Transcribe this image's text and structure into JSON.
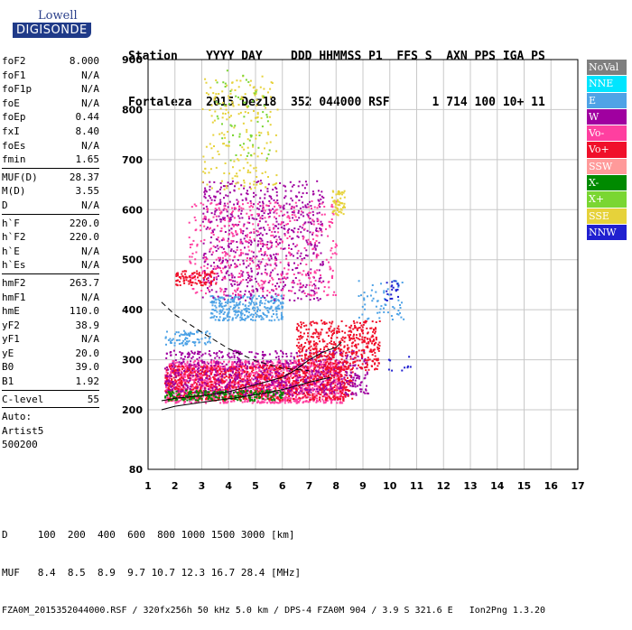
{
  "logo": {
    "line1": "Lowell",
    "line2": "DIGISONDE"
  },
  "header": {
    "line1": "Station    YYYY DAY    DDD HHMMSS P1  FFS S  AXN PPS IGA PS",
    "line2": "Fortaleza  2015 Dez18  352 044000 RSF      1 714 100 10+ 11"
  },
  "params": {
    "group1": [
      [
        "foF2",
        "8.000"
      ],
      [
        "foF1",
        "N/A"
      ],
      [
        "foF1p",
        "N/A"
      ],
      [
        "foE",
        "N/A"
      ],
      [
        "foEp",
        "0.44"
      ],
      [
        "fxI",
        "8.40"
      ],
      [
        "foEs",
        "N/A"
      ],
      [
        "fmin",
        "1.65"
      ]
    ],
    "group2": [
      [
        "MUF(D)",
        "28.37"
      ],
      [
        "M(D)",
        "3.55"
      ],
      [
        "D",
        "N/A"
      ]
    ],
    "group3": [
      [
        "h`F",
        "220.0"
      ],
      [
        "h`F2",
        "220.0"
      ],
      [
        "h`E",
        "N/A"
      ],
      [
        "h`Es",
        "N/A"
      ]
    ],
    "group4": [
      [
        "hmF2",
        "263.7"
      ],
      [
        "hmF1",
        "N/A"
      ],
      [
        "hmE",
        "110.0"
      ],
      [
        "yF2",
        "38.9"
      ],
      [
        "yF1",
        "N/A"
      ],
      [
        "yE",
        "20.0"
      ],
      [
        "B0",
        "39.0"
      ],
      [
        "B1",
        "1.92"
      ]
    ],
    "group5": [
      [
        "C-level",
        "55"
      ]
    ],
    "auto": [
      "Auto:",
      "Artist5",
      "500200"
    ]
  },
  "legend": [
    {
      "label": "NoVal",
      "color": "#7f7f7f"
    },
    {
      "label": "NNE",
      "color": "#00e5ff"
    },
    {
      "label": "E",
      "color": "#4fa3e6"
    },
    {
      "label": "W",
      "color": "#a000a0"
    },
    {
      "label": "Vo-",
      "color": "#ff3fa0"
    },
    {
      "label": "Vo+",
      "color": "#f0102a"
    },
    {
      "label": "SSW",
      "color": "#ff9a9a"
    },
    {
      "label": "X-",
      "color": "#008a00"
    },
    {
      "label": "X+",
      "color": "#7ad632"
    },
    {
      "label": "SSE",
      "color": "#e6d23a"
    },
    {
      "label": "NNW",
      "color": "#2020d0"
    }
  ],
  "footer": {
    "line1": "D     100  200  400  600  800 1000 1500 3000 [km]",
    "line2": "MUF   8.4  8.5  8.9  9.7 10.7 12.3 16.7 28.4 [MHz]",
    "line3": "FZA0M_2015352044000.RSF / 320fx256h 50 kHz 5.0 km / DPS-4 FZA0M 904 / 3.9 S 321.6 E   Ion2Png 1.3.20"
  },
  "chart_data": {
    "type": "scatter",
    "xlim": [
      1,
      17
    ],
    "ylim": [
      80,
      900
    ],
    "x_ticks": [
      1,
      2,
      3,
      4,
      5,
      6,
      7,
      8,
      9,
      10,
      11,
      12,
      13,
      14,
      15,
      16,
      17
    ],
    "y_ticks": [
      80,
      200,
      300,
      400,
      500,
      600,
      700,
      800,
      900
    ],
    "grid": true,
    "legend_position": "right",
    "clusters": [
      {
        "series": "Vo-",
        "x": [
          1.6,
          8.3
        ],
        "y": [
          215,
          300
        ],
        "n": 1600
      },
      {
        "series": "Vo+",
        "x": [
          1.6,
          8.6
        ],
        "y": [
          220,
          290
        ],
        "n": 1000
      },
      {
        "series": "W",
        "x": [
          1.6,
          9.2
        ],
        "y": [
          230,
          320
        ],
        "n": 700
      },
      {
        "series": "Vo+",
        "x": [
          6.5,
          9.6
        ],
        "y": [
          280,
          380
        ],
        "n": 500
      },
      {
        "series": "X-",
        "x": [
          1.6,
          6
        ],
        "y": [
          220,
          240
        ],
        "n": 200
      },
      {
        "series": "E",
        "x": [
          3.3,
          6
        ],
        "y": [
          380,
          430
        ],
        "n": 300
      },
      {
        "series": "E",
        "x": [
          1.6,
          3.3
        ],
        "y": [
          330,
          360
        ],
        "n": 80
      },
      {
        "series": "W",
        "x": [
          3,
          7.5
        ],
        "y": [
          420,
          660
        ],
        "n": 700
      },
      {
        "series": "Vo-",
        "x": [
          2.5,
          8
        ],
        "y": [
          430,
          620
        ],
        "n": 500
      },
      {
        "series": "Vo+",
        "x": [
          2,
          3.5
        ],
        "y": [
          450,
          480
        ],
        "n": 100
      },
      {
        "series": "SSE",
        "x": [
          3,
          5.8
        ],
        "y": [
          640,
          870
        ],
        "n": 200
      },
      {
        "series": "SSE",
        "x": [
          7.8,
          8.3
        ],
        "y": [
          590,
          640
        ],
        "n": 60
      },
      {
        "series": "X+",
        "x": [
          3.5,
          5.5
        ],
        "y": [
          700,
          880
        ],
        "n": 60
      },
      {
        "series": "E",
        "x": [
          8.8,
          10.5
        ],
        "y": [
          380,
          460
        ],
        "n": 60
      },
      {
        "series": "NNW",
        "x": [
          9.8,
          10.3
        ],
        "y": [
          420,
          460
        ],
        "n": 20
      },
      {
        "series": "NNW",
        "x": [
          9.9,
          10.8
        ],
        "y": [
          280,
          310
        ],
        "n": 10
      }
    ],
    "lines": [
      {
        "style": "solid",
        "x": [
          1.5,
          2,
          3,
          4,
          5,
          6,
          7,
          7.8
        ],
        "y": [
          200,
          207,
          215,
          222,
          230,
          240,
          255,
          265
        ]
      },
      {
        "style": "solid",
        "x": [
          1.5,
          2,
          3,
          4,
          5,
          6,
          6.5,
          7,
          7.5,
          8,
          8.2
        ],
        "y": [
          218,
          223,
          228,
          236,
          250,
          265,
          280,
          300,
          315,
          325,
          335
        ]
      },
      {
        "style": "dashed",
        "x": [
          1.5,
          2,
          3,
          4,
          5,
          6,
          7
        ],
        "y": [
          415,
          390,
          355,
          322,
          298,
          283,
          278
        ]
      }
    ]
  }
}
